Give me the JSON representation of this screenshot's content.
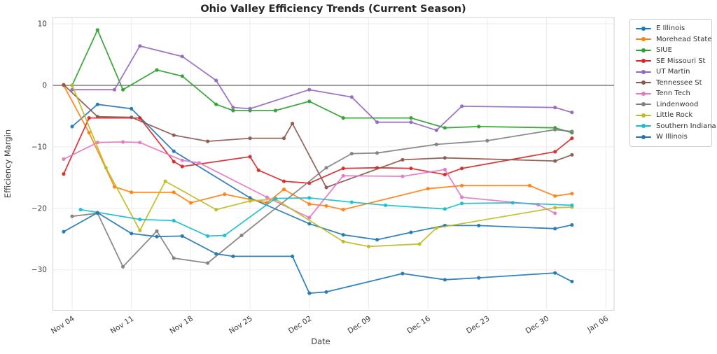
{
  "title": "Ohio Valley Efficiency Trends (Current Season)",
  "chart_data": {
    "type": "line",
    "title": "Ohio Valley Efficiency Trends (Current Season)",
    "xlabel": "Date",
    "ylabel": "Efficiency Margin",
    "x_tick_labels": [
      "Nov 04",
      "Nov 11",
      "Nov 18",
      "Nov 25",
      "Dec 02",
      "Dec 09",
      "Dec 16",
      "Dec 23",
      "Dec 30",
      "Jan 06"
    ],
    "y_ticks": [
      10,
      0,
      -10,
      -20,
      -30
    ],
    "ylim": [
      -36.5,
      11.2
    ],
    "grid": true,
    "zero_line": true,
    "legend_position": "outside-top-right",
    "colors": {
      "grid": "#ebebf2",
      "spine": "#d0d0da",
      "zero_line": "#3c3c3c",
      "text": "#3a3a3a"
    },
    "series": [
      {
        "name": "E Illinois",
        "color": "#1f77b4",
        "points": [
          [
            "Nov 04",
            -6.7
          ],
          [
            "Nov 07",
            -3.1
          ],
          [
            "Nov 11",
            -3.8
          ],
          [
            "Nov 16",
            -10.7
          ],
          [
            "Nov 25",
            -18.3
          ],
          [
            "Dec 02",
            -22.5
          ],
          [
            "Dec 06",
            -24.3
          ],
          [
            "Dec 10",
            -25.1
          ],
          [
            "Dec 14",
            -23.9
          ],
          [
            "Dec 18",
            -22.8
          ],
          [
            "Dec 22",
            -22.8
          ],
          [
            "Dec 31",
            -23.3
          ],
          [
            "Jan 02",
            -22.7
          ]
        ]
      },
      {
        "name": "Morehead State",
        "color": "#ff7f0e",
        "points": [
          [
            "Nov 03",
            0.0
          ],
          [
            "Nov 06",
            -7.7
          ],
          [
            "Nov 09",
            -16.5
          ],
          [
            "Nov 11",
            -17.4
          ],
          [
            "Nov 16",
            -17.4
          ],
          [
            "Nov 18",
            -19.1
          ],
          [
            "Nov 22",
            -17.7
          ],
          [
            "Nov 27",
            -19.1
          ],
          [
            "Nov 29",
            -16.9
          ],
          [
            "Dec 02",
            -19.3
          ],
          [
            "Dec 04",
            -19.6
          ],
          [
            "Dec 06",
            -20.2
          ],
          [
            "Dec 16",
            -16.8
          ],
          [
            "Dec 20",
            -16.3
          ],
          [
            "Dec 28",
            -16.3
          ],
          [
            "Dec 31",
            -18.0
          ],
          [
            "Jan 02",
            -17.6
          ]
        ]
      },
      {
        "name": "SIUE",
        "color": "#2ca02c",
        "points": [
          [
            "Nov 04",
            0.0
          ],
          [
            "Nov 07",
            9.0
          ],
          [
            "Nov 10",
            -0.7
          ],
          [
            "Nov 14",
            2.5
          ],
          [
            "Nov 17",
            1.5
          ],
          [
            "Nov 21",
            -3.1
          ],
          [
            "Nov 23",
            -4.1
          ],
          [
            "Nov 25",
            -4.1
          ],
          [
            "Nov 28",
            -4.1
          ],
          [
            "Dec 02",
            -2.6
          ],
          [
            "Dec 06",
            -5.3
          ],
          [
            "Dec 14",
            -5.3
          ],
          [
            "Dec 18",
            -6.9
          ],
          [
            "Dec 22",
            -6.7
          ],
          [
            "Dec 31",
            -6.9
          ],
          [
            "Jan 02",
            -7.7
          ]
        ]
      },
      {
        "name": "SE Missouri St",
        "color": "#d62728",
        "points": [
          [
            "Nov 03",
            -14.4
          ],
          [
            "Nov 06",
            -5.3
          ],
          [
            "Nov 12",
            -5.3
          ],
          [
            "Nov 16",
            -12.4
          ],
          [
            "Nov 17",
            -13.2
          ],
          [
            "Nov 25",
            -11.6
          ],
          [
            "Nov 26",
            -13.8
          ],
          [
            "Nov 29",
            -15.6
          ],
          [
            "Dec 02",
            -15.9
          ],
          [
            "Dec 06",
            -13.5
          ],
          [
            "Dec 10",
            -13.4
          ],
          [
            "Dec 14",
            -13.5
          ],
          [
            "Dec 18",
            -14.5
          ],
          [
            "Dec 20",
            -13.5
          ],
          [
            "Dec 31",
            -10.8
          ],
          [
            "Jan 02",
            -8.6
          ]
        ]
      },
      {
        "name": "UT Martin",
        "color": "#9467bd",
        "points": [
          [
            "Nov 04",
            -0.7
          ],
          [
            "Nov 09",
            -0.7
          ],
          [
            "Nov 12",
            6.4
          ],
          [
            "Nov 17",
            4.7
          ],
          [
            "Nov 21",
            0.8
          ],
          [
            "Nov 23",
            -3.6
          ],
          [
            "Nov 25",
            -3.8
          ],
          [
            "Dec 02",
            -0.7
          ],
          [
            "Dec 07",
            -1.9
          ],
          [
            "Dec 10",
            -6.0
          ],
          [
            "Dec 14",
            -6.0
          ],
          [
            "Dec 17",
            -7.3
          ],
          [
            "Dec 20",
            -3.4
          ],
          [
            "Dec 31",
            -3.6
          ],
          [
            "Jan 02",
            -4.4
          ]
        ]
      },
      {
        "name": "Tennessee St",
        "color": "#8c564b",
        "points": [
          [
            "Nov 03",
            0.1
          ],
          [
            "Nov 07",
            -5.1
          ],
          [
            "Nov 11",
            -5.2
          ],
          [
            "Nov 16",
            -8.1
          ],
          [
            "Nov 20",
            -9.1
          ],
          [
            "Nov 25",
            -8.6
          ],
          [
            "Nov 29",
            -8.6
          ],
          [
            "Nov 30",
            -6.2
          ],
          [
            "Dec 04",
            -16.6
          ],
          [
            "Dec 13",
            -12.1
          ],
          [
            "Dec 18",
            -11.8
          ],
          [
            "Dec 31",
            -12.3
          ],
          [
            "Jan 02",
            -11.3
          ]
        ]
      },
      {
        "name": "Tenn Tech",
        "color": "#e377c2",
        "points": [
          [
            "Nov 03",
            -12.0
          ],
          [
            "Nov 07",
            -9.3
          ],
          [
            "Nov 10",
            -9.2
          ],
          [
            "Nov 12",
            -9.3
          ],
          [
            "Nov 17",
            -12.2
          ],
          [
            "Nov 19",
            -12.6
          ],
          [
            "Nov 27",
            -18.2
          ],
          [
            "Dec 02",
            -21.5
          ],
          [
            "Dec 06",
            -14.7
          ],
          [
            "Dec 13",
            -14.8
          ],
          [
            "Dec 18",
            -13.7
          ],
          [
            "Dec 20",
            -18.2
          ],
          [
            "Dec 29",
            -19.4
          ],
          [
            "Dec 31",
            -20.8
          ]
        ]
      },
      {
        "name": "Lindenwood",
        "color": "#7f7f7f",
        "points": [
          [
            "Nov 04",
            -21.3
          ],
          [
            "Nov 07",
            -20.8
          ],
          [
            "Nov 10",
            -29.5
          ],
          [
            "Nov 14",
            -23.7
          ],
          [
            "Nov 16",
            -28.1
          ],
          [
            "Nov 20",
            -28.9
          ],
          [
            "Nov 24",
            -24.4
          ],
          [
            "Dec 04",
            -13.4
          ],
          [
            "Dec 07",
            -11.1
          ],
          [
            "Dec 10",
            -11.0
          ],
          [
            "Dec 17",
            -9.6
          ],
          [
            "Dec 23",
            -9.0
          ],
          [
            "Dec 31",
            -7.2
          ],
          [
            "Jan 02",
            -7.5
          ]
        ]
      },
      {
        "name": "Little Rock",
        "color": "#bcbd22",
        "points": [
          [
            "Nov 04",
            0.0
          ],
          [
            "Nov 08",
            -13.4
          ],
          [
            "Nov 12",
            -23.6
          ],
          [
            "Nov 15",
            -15.6
          ],
          [
            "Nov 21",
            -20.2
          ],
          [
            "Nov 25",
            -18.8
          ],
          [
            "Nov 28",
            -18.5
          ],
          [
            "Dec 06",
            -25.4
          ],
          [
            "Dec 09",
            -26.2
          ],
          [
            "Dec 15",
            -25.8
          ],
          [
            "Dec 17",
            -23.2
          ],
          [
            "Dec 31",
            -19.9
          ],
          [
            "Jan 02",
            -19.8
          ]
        ]
      },
      {
        "name": "Southern Indiana",
        "color": "#17becf",
        "points": [
          [
            "Nov 05",
            -20.2
          ],
          [
            "Nov 12",
            -21.8
          ],
          [
            "Nov 16",
            -22.0
          ],
          [
            "Nov 20",
            -24.5
          ],
          [
            "Nov 22",
            -24.4
          ],
          [
            "Nov 28",
            -18.4
          ],
          [
            "Dec 02",
            -18.3
          ],
          [
            "Dec 07",
            -19.0
          ],
          [
            "Dec 11",
            -19.5
          ],
          [
            "Dec 18",
            -20.1
          ],
          [
            "Dec 20",
            -19.2
          ],
          [
            "Dec 26",
            -19.1
          ],
          [
            "Jan 02",
            -19.5
          ]
        ]
      },
      {
        "name": "W Illinois",
        "color": "#1f77b4",
        "points": [
          [
            "Nov 03",
            -23.8
          ],
          [
            "Nov 07",
            -20.7
          ],
          [
            "Nov 11",
            -24.1
          ],
          [
            "Nov 14",
            -24.6
          ],
          [
            "Nov 17",
            -24.5
          ],
          [
            "Nov 21",
            -27.4
          ],
          [
            "Nov 23",
            -27.8
          ],
          [
            "Nov 30",
            -27.8
          ],
          [
            "Dec 02",
            -33.8
          ],
          [
            "Dec 04",
            -33.6
          ],
          [
            "Dec 13",
            -30.6
          ],
          [
            "Dec 18",
            -31.6
          ],
          [
            "Dec 22",
            -31.3
          ],
          [
            "Dec 31",
            -30.5
          ],
          [
            "Jan 02",
            -31.9
          ]
        ]
      }
    ]
  }
}
